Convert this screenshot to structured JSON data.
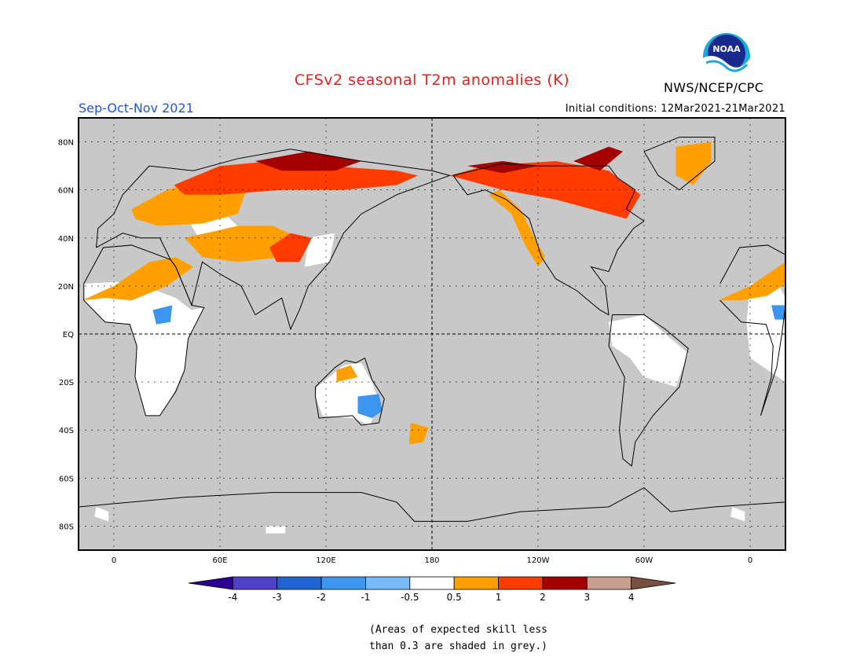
{
  "header": {
    "title": "CFSv2 seasonal T2m anomalies (K)",
    "season": "Sep-Oct-Nov 2021",
    "initial_conditions": "Initial conditions: 12Mar2021-21Mar2021",
    "agency": "NWS/NCEP/CPC",
    "logo_text": "NOAA"
  },
  "colors": {
    "title": "#e8201a",
    "season": "#2255dd",
    "grey_skill": "#c8c8c8",
    "c_lt_4": "#290092",
    "c_m4_m3": "#5040c8",
    "c_m3_m2": "#1e64d2",
    "c_m2_m1": "#3c96f0",
    "c_m1_m05": "#78b9fa",
    "c_neutral": "#ffffff",
    "c_05_1": "#ff9f00",
    "c_1_2": "#ff3b00",
    "c_2_3": "#a50000",
    "c_3_4": "#c8a090",
    "c_gt_4": "#785040"
  },
  "map": {
    "projection": "cylindrical equidistant",
    "lon_range": [
      -20,
      380
    ],
    "lat_range": [
      -90,
      90
    ],
    "lat_labels": [
      "80N",
      "60N",
      "40N",
      "20N",
      "EQ",
      "20S",
      "40S",
      "60S",
      "80S"
    ],
    "lon_labels": [
      "0",
      "60E",
      "120E",
      "180",
      "120W",
      "60W",
      "0"
    ]
  },
  "colorbar": {
    "tick_labels": [
      "-4",
      "-3",
      "-2",
      "-1",
      "-0.5",
      "0.5",
      "1",
      "2",
      "3",
      "4"
    ],
    "bins": [
      "< -4",
      "-4 to -3",
      "-3 to -2",
      "-2 to -1",
      "-1 to -0.5",
      "-0.5 to 0.5",
      "0.5 to 1",
      "1 to 2",
      "2 to 3",
      "3 to 4",
      "> 4"
    ]
  },
  "footnote": {
    "line1": "(Areas of expected skill less",
    "line2": "than 0.3 are shaded in grey.)"
  }
}
